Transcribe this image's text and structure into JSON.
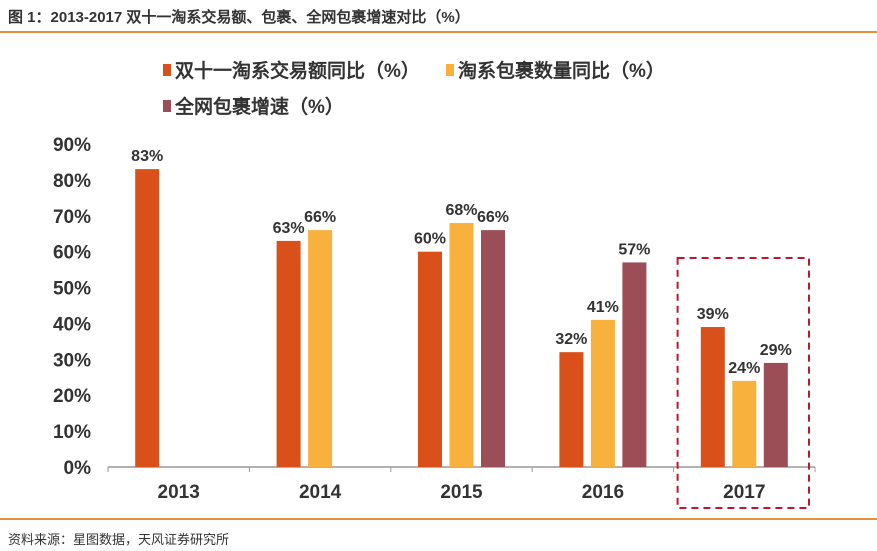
{
  "title": "图 1：2013-2017 双十一淘系交易额、包裹、全网包裹增速对比（%）",
  "source": "资料来源：星图数据，天风证券研究所",
  "colors": {
    "rule": "#E8913A",
    "highlight_box": "#C0162B"
  },
  "chart_data": {
    "type": "bar",
    "categories": [
      "2013",
      "2014",
      "2015",
      "2016",
      "2017"
    ],
    "series": [
      {
        "name": "双十一淘系交易额同比（%）",
        "color": "#D9501A",
        "values": [
          83,
          63,
          60,
          32,
          39
        ],
        "labels": [
          "83%",
          "63%",
          "60%",
          "32%",
          "39%"
        ]
      },
      {
        "name": "淘系包裹数量同比（%）",
        "color": "#F8B13D",
        "values": [
          null,
          66,
          68,
          41,
          24
        ],
        "labels": [
          "",
          "66%",
          "68%",
          "41%",
          "24%"
        ]
      },
      {
        "name": "全网包裹增速（%）",
        "color": "#9B4E55",
        "values": [
          null,
          null,
          66,
          57,
          29
        ],
        "labels": [
          "",
          "",
          "66%",
          "57%",
          "29%"
        ]
      }
    ],
    "yticks": [
      "0%",
      "10%",
      "20%",
      "30%",
      "40%",
      "50%",
      "60%",
      "70%",
      "80%",
      "90%"
    ],
    "ylim": [
      0,
      90
    ],
    "grid": false,
    "legend": "top",
    "highlighted_category": "2017"
  }
}
